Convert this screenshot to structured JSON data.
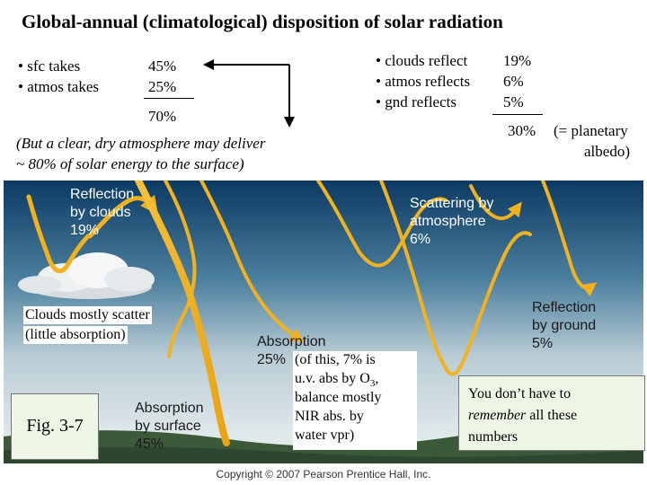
{
  "title": "Global-annual (climatological) disposition of solar radiation",
  "sfc_atmos": {
    "items": [
      {
        "label": "• sfc takes",
        "value": "45%"
      },
      {
        "label": "• atmos takes",
        "value": "25%"
      }
    ],
    "total": "70%"
  },
  "reflect": {
    "items": [
      {
        "label": "• clouds reflect",
        "value": "19%"
      },
      {
        "label": "• atmos reflects",
        "value": "6%"
      },
      {
        "label": "• gnd reflects",
        "value": "5%"
      }
    ],
    "total": "30%",
    "total_note_line1": "(= planetary",
    "total_note_line2": "albedo)"
  },
  "clear_note": {
    "line1": "(But a clear, dry atmosphere may deliver",
    "line2": "~ 80% of solar energy to the surface)"
  },
  "diagram": {
    "refl_clouds": [
      "Reflection",
      "by clouds",
      "19%"
    ],
    "scatter_atmos": [
      "Scattering by",
      "atmosphere",
      "6%"
    ],
    "refl_ground": [
      "Reflection",
      "by ground",
      "5%"
    ],
    "absorption": [
      "Absorption",
      "25%"
    ],
    "abs_surface": [
      "Absorption",
      "by surface",
      "45%"
    ]
  },
  "clouds_note": {
    "line1": "Clouds mostly scatter",
    "line2": "(little absorption)"
  },
  "abs_note": {
    "line1": "(of this, 7% is",
    "line2_pre": "u.v. abs by O",
    "line2_sub": "3",
    "line2_post": ",",
    "line3": "balance mostly",
    "line4": "NIR abs. by",
    "line5": "water vpr)"
  },
  "fig_label": "Fig. 3-7",
  "remember_note": {
    "line1": "You don’t have to",
    "line2_em": "remember",
    "line2_post": " all these",
    "line3": "numbers"
  },
  "copyright": "Copyright © 2007 Pearson Prentice Hall, Inc.",
  "colors": {
    "arrow": "#f2b21e",
    "sky_top": "#0d3d66",
    "sky_bottom": "#e9eef0",
    "ground": "#3c5a3c"
  }
}
